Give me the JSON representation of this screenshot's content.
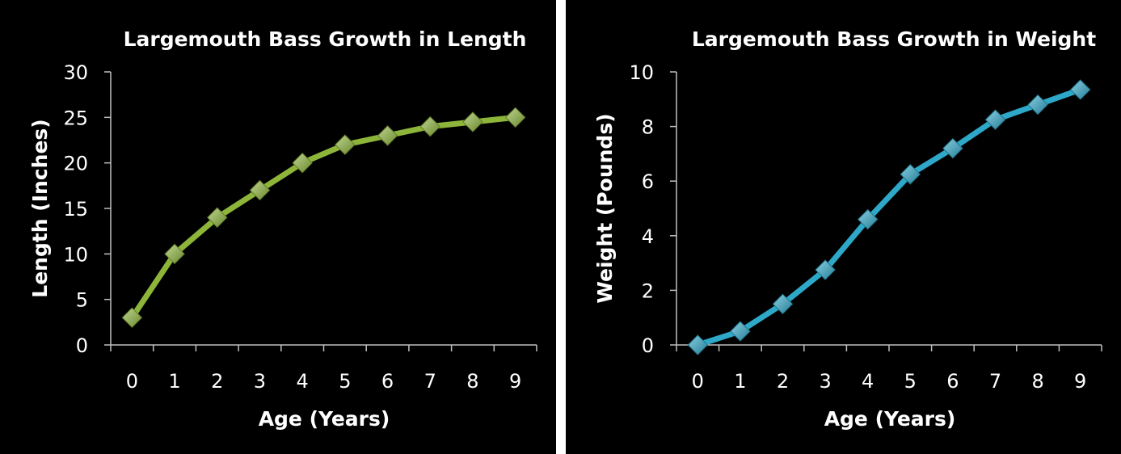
{
  "chart_data": [
    {
      "type": "line",
      "title": "Largemouth Bass Growth in Length",
      "xlabel": "Age (Years)",
      "ylabel": "Length (Inches)",
      "x": [
        0,
        1,
        2,
        3,
        4,
        5,
        6,
        7,
        8,
        9
      ],
      "series": [
        {
          "values": [
            3,
            10,
            14,
            17,
            20,
            22,
            23,
            24,
            24.5,
            25
          ]
        }
      ],
      "ylim": [
        0,
        30
      ],
      "yticks": [
        0,
        5,
        10,
        15,
        20,
        25,
        30
      ],
      "grid": false,
      "legend": "none",
      "color": "#8db53a",
      "marker": "diamond",
      "background": "#000000"
    },
    {
      "type": "line",
      "title": "Largemouth Bass Growth in Weight",
      "xlabel": "Age (Years)",
      "ylabel": "Weight (Pounds)",
      "x": [
        0,
        1,
        2,
        3,
        4,
        5,
        6,
        7,
        8,
        9
      ],
      "series": [
        {
          "values": [
            0,
            0.5,
            1.5,
            2.75,
            4.6,
            6.25,
            7.2,
            8.25,
            8.8,
            9.35
          ]
        }
      ],
      "ylim": [
        0,
        10
      ],
      "yticks": [
        0,
        2,
        4,
        6,
        8,
        10
      ],
      "grid": false,
      "legend": "none",
      "color": "#2ea8c9",
      "marker": "diamond",
      "background": "#000000"
    }
  ]
}
